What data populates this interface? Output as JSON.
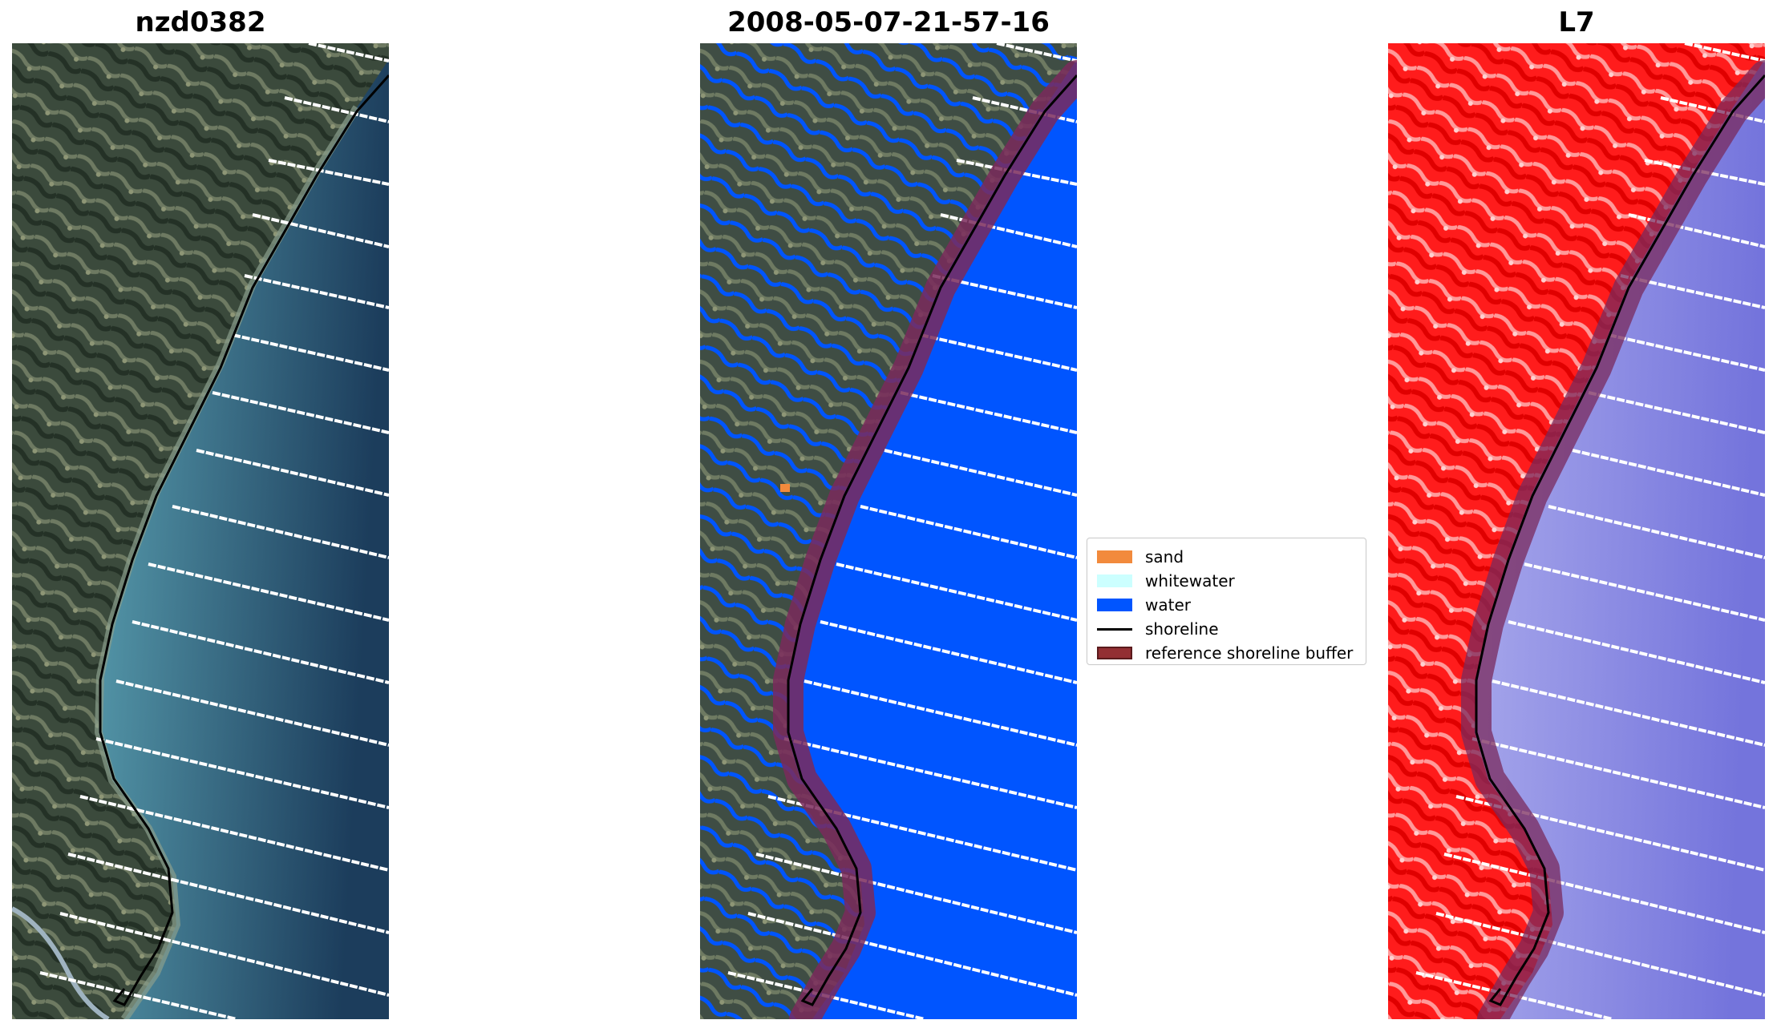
{
  "panels": [
    {
      "title": "nzd0382",
      "style": "rgb"
    },
    {
      "title": "2008-05-07-21-57-16",
      "style": "classified"
    },
    {
      "title": "L7",
      "style": "index"
    }
  ],
  "legend": {
    "items": [
      {
        "label": "sand",
        "kind": "patch",
        "color": "#f28a3c"
      },
      {
        "label": "whitewater",
        "kind": "patch",
        "color": "#ccffff"
      },
      {
        "label": "water",
        "kind": "patch",
        "color": "#0055ff"
      },
      {
        "label": "shoreline",
        "kind": "line",
        "color": "#000000"
      },
      {
        "label": "reference shoreline buffer",
        "kind": "patch",
        "color": "#932f33",
        "edge": "#5a1a1c"
      }
    ]
  },
  "colors": {
    "land_dark": "#3e4a3f",
    "sea_near": "#5c9aa6",
    "sea_far": "#1b3b57",
    "water_class": "#0055ff",
    "buffer": "#7a2a5c",
    "index_land": "#ff2020",
    "index_sea": "#9b9be8"
  }
}
